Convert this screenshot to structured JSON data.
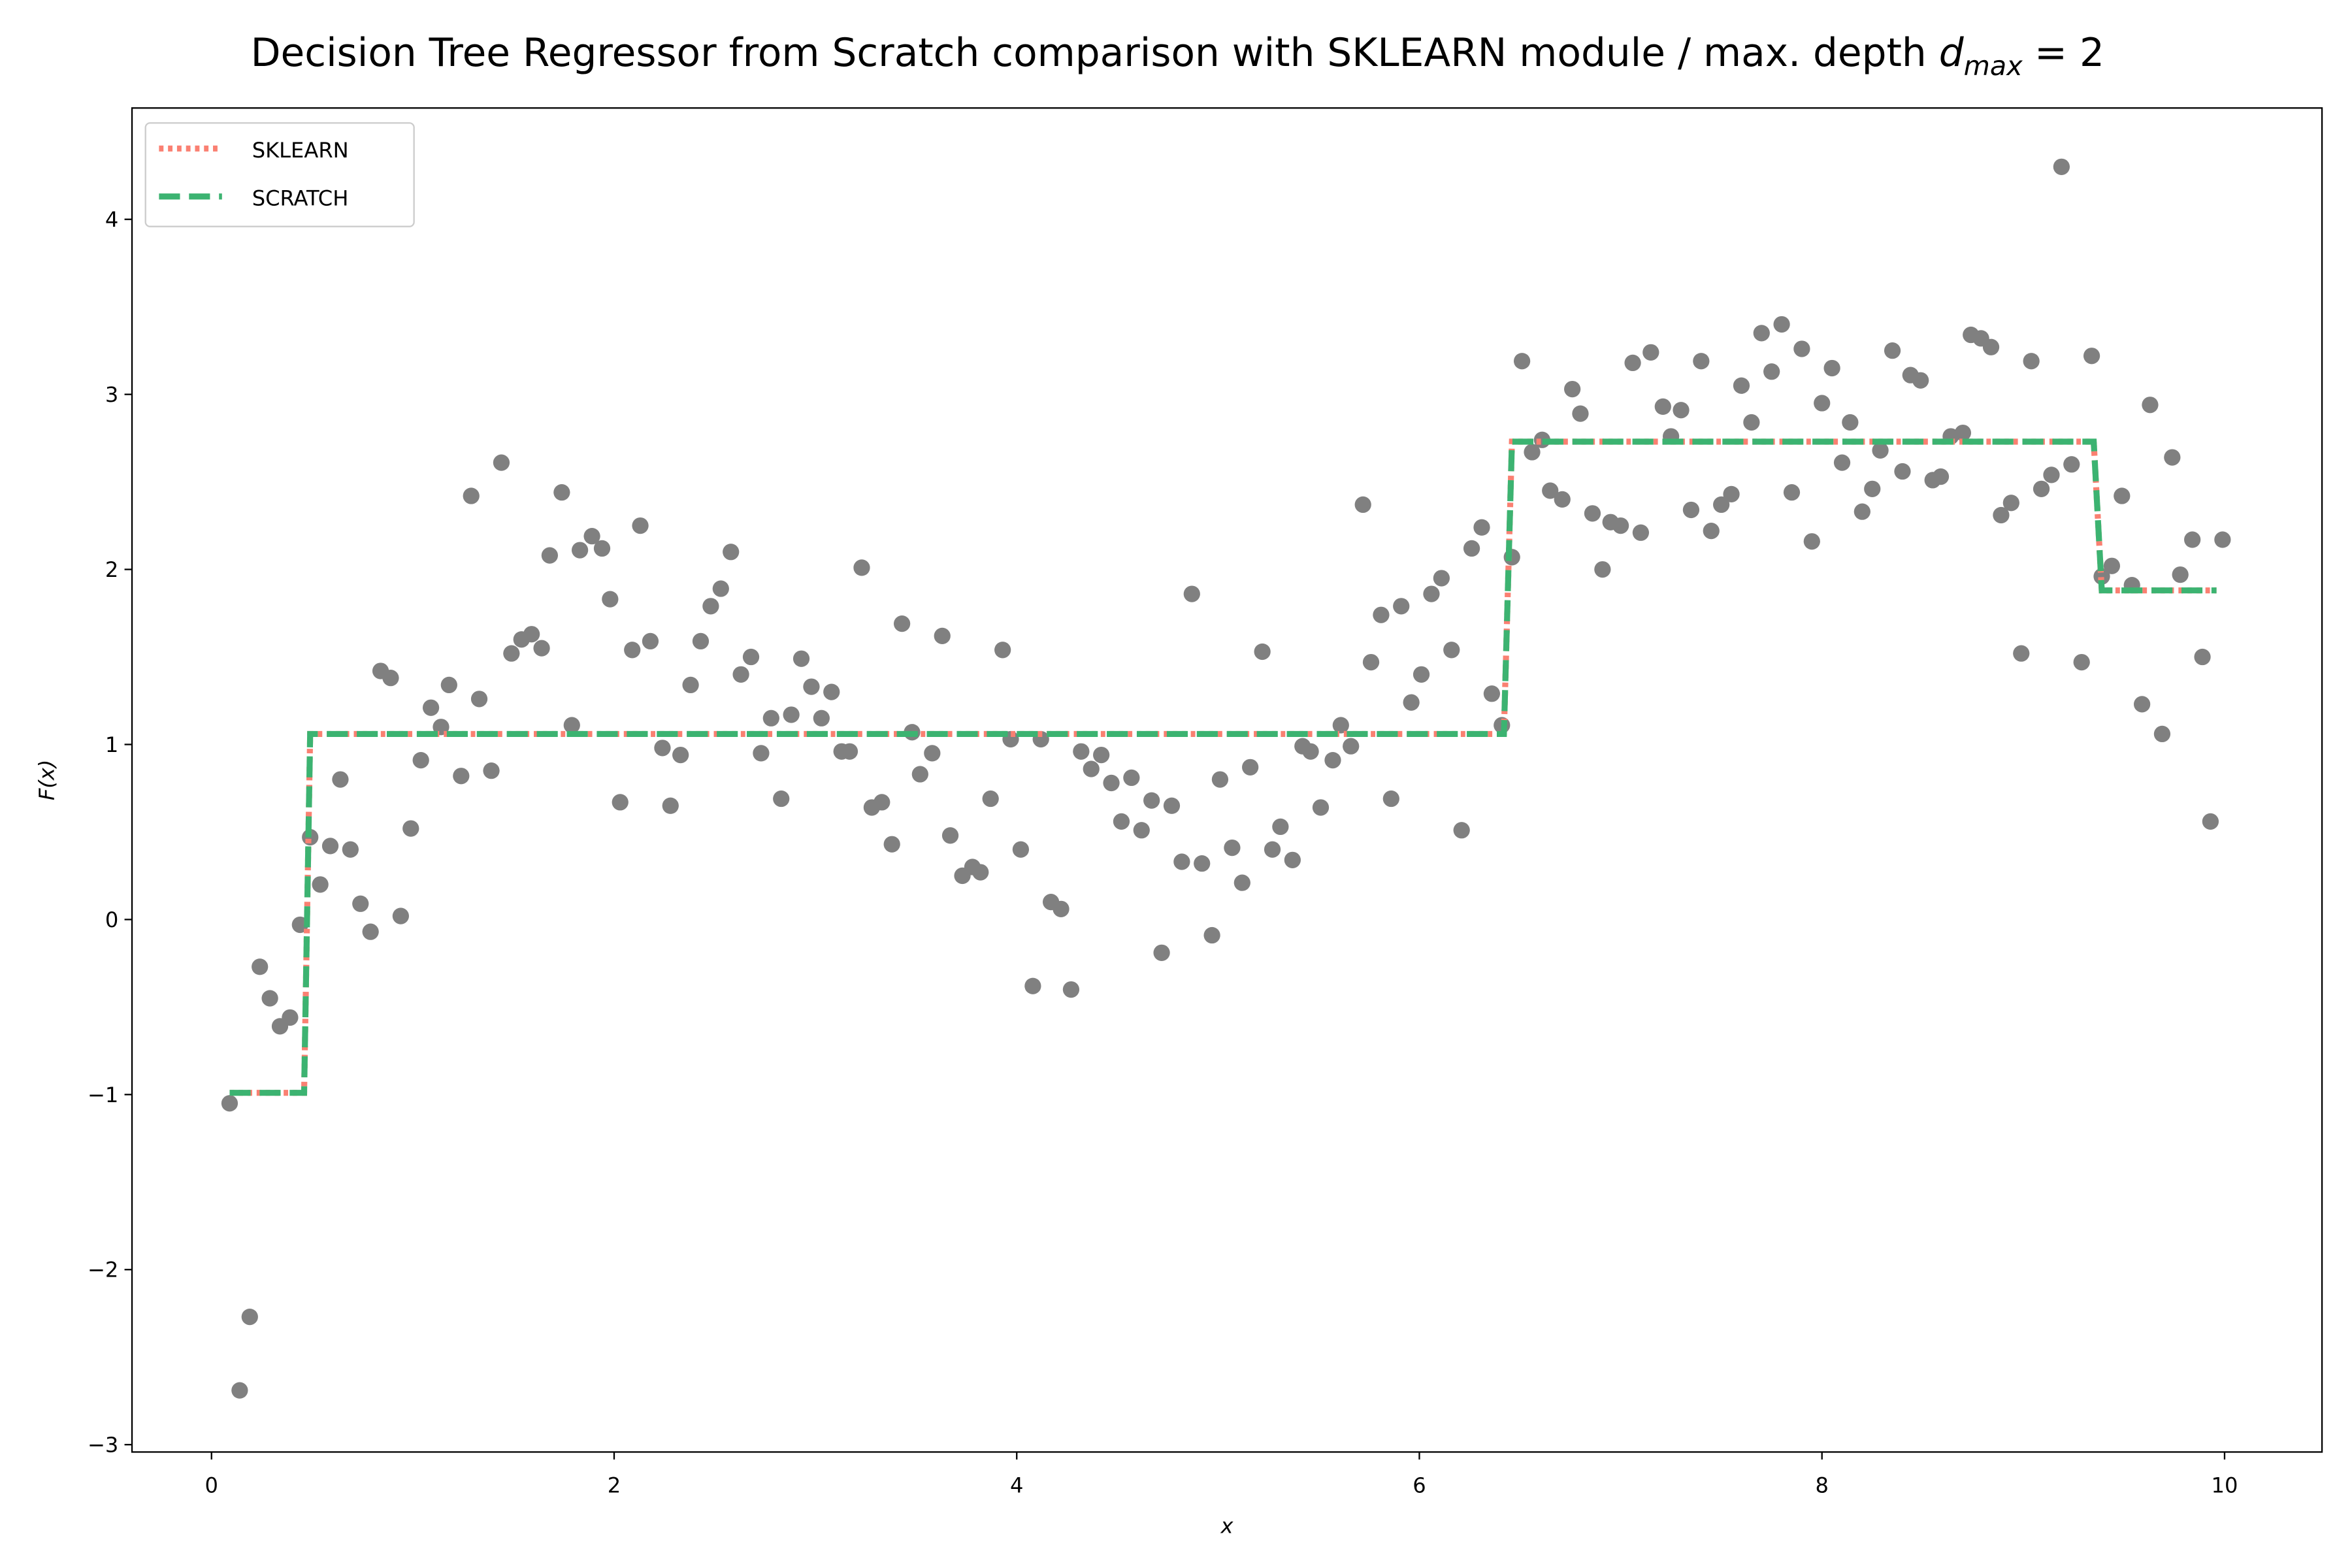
{
  "chart_data": {
    "type": "line",
    "title": "Decision Tree Regressor from Scratch comparison with SKLEARN module / max. depth",
    "title_math": {
      "base": "d",
      "sub": "max",
      "rest": "= 2"
    },
    "xlabel": "x",
    "ylabel": "F(x)",
    "xlim": [
      -0.395,
      10.484
    ],
    "ylim": [
      -3.042,
      4.636
    ],
    "xticks": [
      0,
      2,
      4,
      6,
      8,
      10
    ],
    "yticks": [
      {
        "value": -3,
        "label": "−3"
      },
      {
        "value": -2,
        "label": "−2"
      },
      {
        "value": -1,
        "label": "−1"
      },
      0,
      1,
      2,
      3,
      4
    ],
    "legend": "upper left",
    "grid": false,
    "scatter": {
      "color": "#808080",
      "x": [
        0.09,
        0.14,
        0.19,
        0.24,
        0.29,
        0.34,
        0.39,
        0.44,
        0.49,
        0.54,
        0.59,
        0.64,
        0.69,
        0.74,
        0.79,
        0.84,
        0.89,
        0.94,
        0.99,
        1.04,
        1.09,
        1.14,
        1.18,
        1.24,
        1.29,
        1.33,
        1.39,
        1.44,
        1.49,
        1.54,
        1.59,
        1.64,
        1.68,
        1.74,
        1.79,
        1.83,
        1.89,
        1.94,
        1.98,
        2.03,
        2.09,
        2.13,
        2.18,
        2.24,
        2.28,
        2.33,
        2.38,
        2.43,
        2.48,
        2.53,
        2.58,
        2.63,
        2.68,
        2.73,
        2.78,
        2.83,
        2.88,
        2.93,
        2.98,
        3.03,
        3.08,
        3.13,
        3.17,
        3.23,
        3.28,
        3.33,
        3.38,
        3.43,
        3.48,
        3.52,
        3.58,
        3.63,
        3.67,
        3.73,
        3.78,
        3.82,
        3.87,
        3.93,
        3.97,
        4.02,
        4.08,
        4.12,
        4.17,
        4.22,
        4.27,
        4.32,
        4.37,
        4.42,
        4.47,
        4.52,
        4.57,
        4.62,
        4.67,
        4.72,
        4.77,
        4.82,
        4.87,
        4.92,
        4.97,
        5.01,
        5.07,
        5.12,
        5.16,
        5.22,
        5.27,
        5.31,
        5.37,
        5.42,
        5.46,
        5.51,
        5.57,
        5.61,
        5.66,
        5.72,
        5.76,
        5.81,
        5.86,
        5.91,
        5.96,
        6.01,
        6.06,
        6.11,
        6.16,
        6.21,
        6.26,
        6.31,
        6.36,
        6.41,
        6.46,
        6.51,
        6.56,
        6.61,
        6.65,
        6.71,
        6.76,
        6.8,
        6.86,
        6.91,
        6.95,
        7.0,
        7.06,
        7.1,
        7.15,
        7.21,
        7.25,
        7.3,
        7.35,
        7.4,
        7.45,
        7.5,
        7.55,
        7.6,
        7.65,
        7.7,
        7.75,
        7.8,
        7.85,
        7.9,
        7.95,
        8.0,
        8.05,
        8.1,
        8.14,
        8.2,
        8.25,
        8.29,
        8.35,
        8.4,
        8.44,
        8.49,
        8.55,
        8.59,
        8.64,
        8.7,
        8.74,
        8.79,
        8.84,
        8.89,
        8.94,
        8.99,
        9.04,
        9.09,
        9.14,
        9.19,
        9.24,
        9.29,
        9.34,
        9.39,
        9.44,
        9.49,
        9.54,
        9.59,
        9.63,
        9.69,
        9.74,
        9.78,
        9.84,
        9.89,
        9.93,
        9.99
      ],
      "y": [
        -1.05,
        -2.69,
        -2.27,
        -0.27,
        -0.45,
        -0.61,
        -0.56,
        -0.03,
        0.47,
        0.2,
        0.42,
        0.8,
        0.4,
        0.09,
        -0.07,
        1.42,
        1.38,
        0.02,
        0.52,
        0.91,
        1.21,
        1.1,
        1.34,
        0.82,
        2.42,
        1.26,
        0.85,
        2.61,
        1.52,
        1.6,
        1.63,
        1.55,
        2.08,
        2.44,
        1.11,
        2.11,
        2.19,
        2.12,
        1.83,
        0.67,
        1.54,
        2.25,
        1.59,
        0.98,
        0.65,
        0.94,
        1.34,
        1.59,
        1.79,
        1.89,
        2.1,
        1.4,
        1.5,
        0.95,
        1.15,
        0.69,
        1.17,
        1.49,
        1.33,
        1.15,
        1.3,
        0.96,
        0.96,
        2.01,
        0.64,
        0.67,
        0.43,
        1.69,
        1.07,
        0.83,
        0.95,
        1.62,
        0.48,
        0.25,
        0.3,
        0.27,
        0.69,
        1.54,
        1.03,
        0.4,
        -0.38,
        1.03,
        0.1,
        0.06,
        -0.4,
        0.96,
        0.86,
        0.94,
        0.78,
        0.56,
        0.81,
        0.51,
        0.68,
        -0.19,
        0.65,
        0.33,
        1.86,
        0.32,
        -0.09,
        0.8,
        0.41,
        0.21,
        0.87,
        1.53,
        0.4,
        0.53,
        0.34,
        0.99,
        0.96,
        0.64,
        0.91,
        1.11,
        0.99,
        2.37,
        1.47,
        1.74,
        0.69,
        1.79,
        1.24,
        1.4,
        1.86,
        1.95,
        1.54,
        0.51,
        2.12,
        2.24,
        1.29,
        1.11,
        2.07,
        3.19,
        2.67,
        2.74,
        2.45,
        2.4,
        3.03,
        2.89,
        2.32,
        2.0,
        2.27,
        2.25,
        3.18,
        2.21,
        3.24,
        2.93,
        2.76,
        2.91,
        2.34,
        3.19,
        2.22,
        2.37,
        2.43,
        3.05,
        2.84,
        3.35,
        3.13,
        3.4,
        2.44,
        3.26,
        2.16,
        2.95,
        3.15,
        2.61,
        2.84,
        2.33,
        2.46,
        2.68,
        3.25,
        2.56,
        3.11,
        3.08,
        2.51,
        2.53,
        2.76,
        2.78,
        3.34,
        3.32,
        3.27,
        2.31,
        2.38,
        1.52,
        3.19,
        2.46,
        2.54,
        4.3,
        2.6,
        1.47,
        3.22,
        1.96,
        2.02,
        2.42,
        1.91,
        1.23,
        2.94,
        1.06,
        2.64,
        1.97,
        2.17,
        1.5,
        0.56,
        2.17
      ]
    },
    "series": [
      {
        "name": "SKLEARN",
        "color": "#fa8072",
        "style": "dotted",
        "x": [
          0.09,
          0.46,
          0.49,
          6.42,
          6.46,
          9.35,
          9.39,
          9.96
        ],
        "values": [
          -0.99,
          -0.99,
          1.06,
          1.06,
          2.73,
          2.73,
          1.88,
          1.88
        ]
      },
      {
        "name": "SCRATCH",
        "color": "#3cb371",
        "style": "dashed",
        "x": [
          0.09,
          0.46,
          0.49,
          6.42,
          6.46,
          9.35,
          9.39,
          9.96
        ],
        "values": [
          -0.99,
          -0.99,
          1.06,
          1.06,
          2.73,
          2.73,
          1.88,
          1.88
        ]
      }
    ]
  }
}
